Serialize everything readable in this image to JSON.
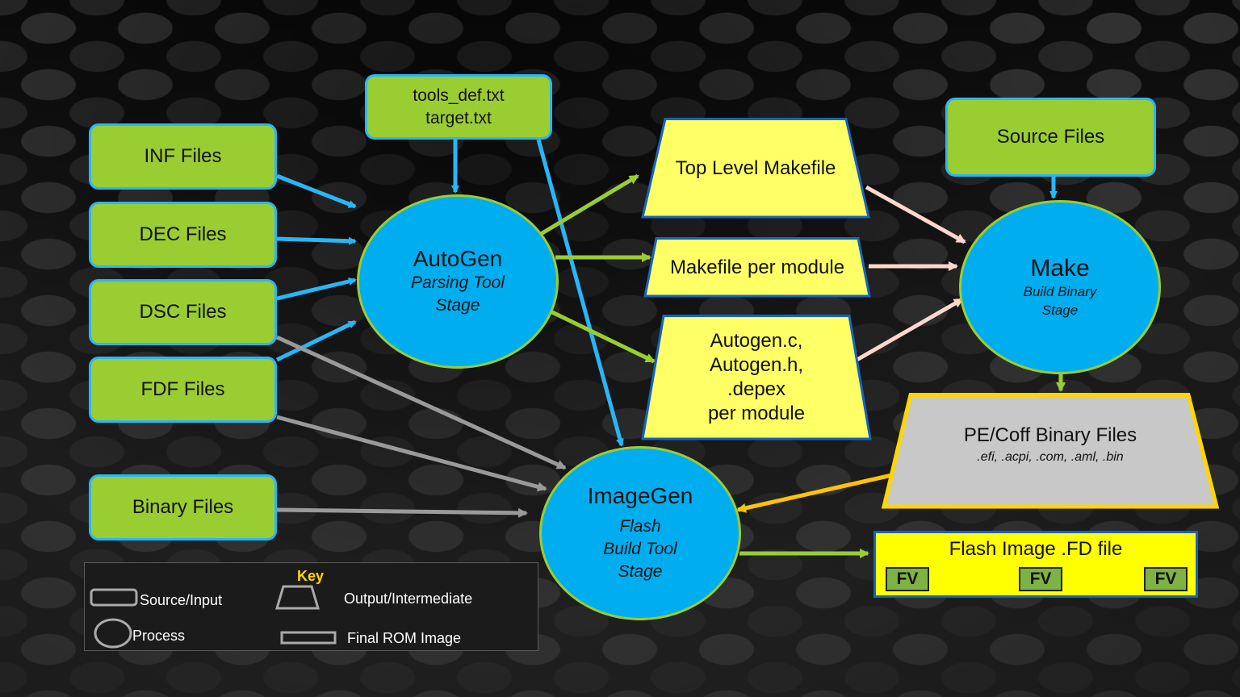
{
  "sources": {
    "inf": "INF Files",
    "dec": "DEC Files",
    "dsc": "DSC Files",
    "fdf": "FDF Files",
    "binary": "Binary Files",
    "tools_line1": "tools_def.txt",
    "tools_line2": "target.txt",
    "source_files": "Source Files"
  },
  "processes": {
    "autogen": {
      "title": "AutoGen",
      "sub1": "Parsing Tool",
      "sub2": "Stage"
    },
    "make": {
      "title": "Make",
      "sub1": "Build Binary",
      "sub2": "Stage"
    },
    "imagegen": {
      "title": "ImageGen",
      "sub1": "Flash",
      "sub2": "Build Tool",
      "sub3": "Stage"
    }
  },
  "outputs": {
    "top_makefile": "Top Level Makefile",
    "makefile_per_module": "Makefile per module",
    "autogen_l1": "Autogen.c,",
    "autogen_l2": "Autogen.h,",
    "autogen_l3": ".depex",
    "autogen_l4": "per module",
    "pecoff_title": "PE/Coff Binary Files",
    "pecoff_sub": ".efi, .acpi, .com, .aml, .bin"
  },
  "flash": {
    "title": "Flash Image .FD file",
    "fv": [
      "FV",
      "FV",
      "FV"
    ]
  },
  "key": {
    "title": "Key",
    "source_input": "Source/Input",
    "process": "Process",
    "output_intermediate": "Output/Intermediate",
    "final_rom": "Final ROM Image"
  },
  "colors": {
    "source_fill": "#9acd32",
    "source_border": "#29b6f6",
    "process_fill": "#00aeef",
    "output_fill": "#ffff66",
    "pecoff_fill": "#c8c8c8",
    "pecoff_border": "#ffd600",
    "arrow_blue": "#29b6f6",
    "arrow_green": "#9acd32",
    "arrow_pink": "#ffd7cc",
    "arrow_gray": "#9a9a9a",
    "arrow_yellow": "#ffc400"
  }
}
